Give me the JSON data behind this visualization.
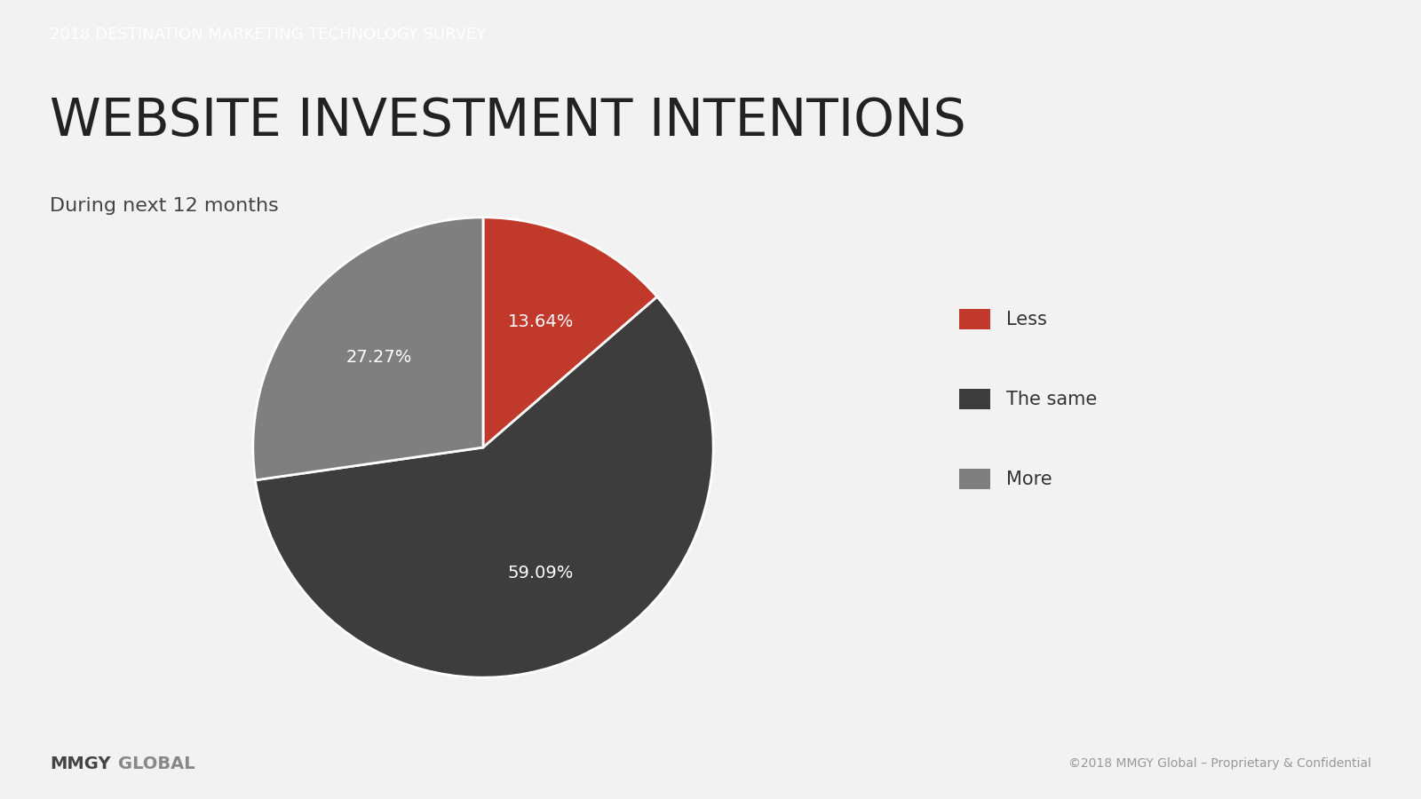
{
  "banner_text": "2018 DESTINATION MARKETING TECHNOLOGY SURVEY",
  "banner_bg": "#333333",
  "banner_text_color": "#ffffff",
  "title": "WEBSITE INVESTMENT INTENTIONS",
  "subtitle": "During next 12 months",
  "background_color": "#f2f2f2",
  "pie_values": [
    13.64,
    59.09,
    27.27
  ],
  "pie_labels": [
    "Less",
    "The same",
    "More"
  ],
  "pie_colors": [
    "#c0392b",
    "#3d3d3d",
    "#7f7f7f"
  ],
  "pie_text_color": "#ffffff",
  "pie_label_fontsize": 14,
  "legend_labels": [
    "Less",
    "The same",
    "More"
  ],
  "legend_colors": [
    "#c0392b",
    "#3d3d3d",
    "#7f7f7f"
  ],
  "footer_left_mmgy": "MMGY",
  "footer_left_global": "GLOBAL",
  "footer_right": "©2018 MMGY Global – Proprietary & Confidential",
  "footer_line_color": "#aaaaaa",
  "title_fontsize": 42,
  "subtitle_fontsize": 16,
  "banner_fontsize": 13
}
